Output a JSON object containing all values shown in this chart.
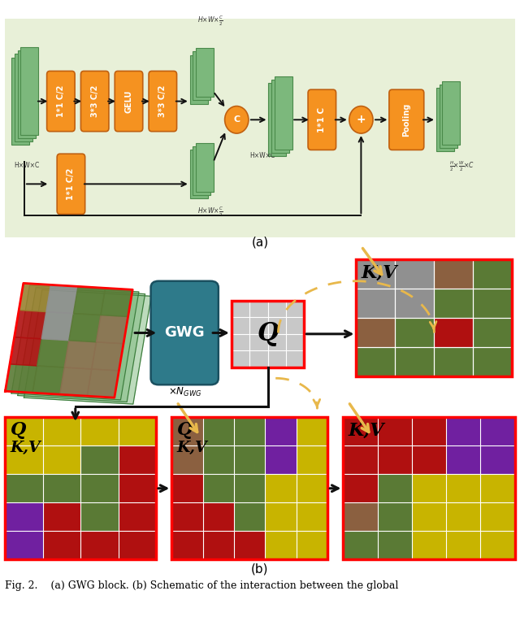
{
  "fig_width": 6.4,
  "fig_height": 7.59,
  "panel_a_bg": "#e8f0d8",
  "panel_a_border": "#b0c090",
  "orange_color": "#f59220",
  "teal_color": "#2e7a8a",
  "green_color": "#7cb87c",
  "green_edge": "#4a8a4a",
  "caption_a": "(a)",
  "caption_b": "(b)",
  "fig_caption": "Fig. 2.    (a) GWG block. (b) Schematic of the interaction between the global",
  "arrow_black": "#111111",
  "arrow_yellow": "#e8b84b",
  "seg_aerial_green": "#5a7a3a",
  "seg_red": "#b01010",
  "seg_brown": "#8b6040",
  "seg_gray": "#909090",
  "seg_yellow": "#c8b400",
  "seg_purple": "#7020a0"
}
